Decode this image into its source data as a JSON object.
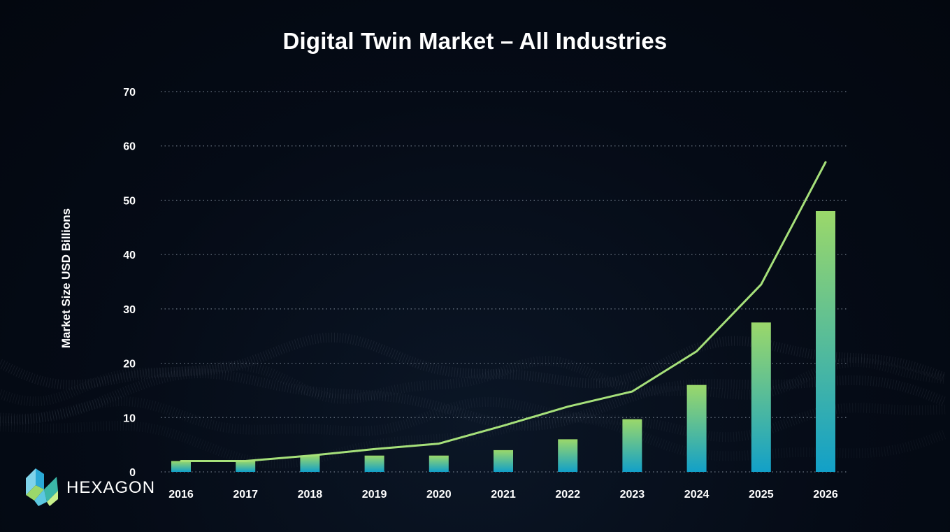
{
  "chart_data": {
    "type": "bar",
    "title": "Digital Twin Market – All Industries",
    "xlabel": "",
    "ylabel": "Market Size USD Billions",
    "categories": [
      "2016",
      "2017",
      "2018",
      "2019",
      "2020",
      "2021",
      "2022",
      "2023",
      "2024",
      "2025",
      "2026"
    ],
    "series": [
      {
        "type": "bar",
        "values": [
          2,
          2,
          3,
          3,
          3,
          4,
          6,
          9.7,
          16,
          27.5,
          48
        ]
      },
      {
        "type": "line",
        "values": [
          2,
          2,
          3,
          4.2,
          5.2,
          8.5,
          12,
          14.8,
          22.2,
          34.5,
          57
        ]
      }
    ],
    "ylim": [
      0,
      70
    ],
    "yticks": [
      0,
      10,
      20,
      30,
      40,
      50,
      60,
      70
    ],
    "grid": true,
    "colors": {
      "bar_top": "#9bd86a",
      "bar_bottom": "#12a0c8",
      "line": "#a6e07a",
      "grid": "#6b7684"
    }
  },
  "logo": {
    "text": "HEXAGON"
  }
}
